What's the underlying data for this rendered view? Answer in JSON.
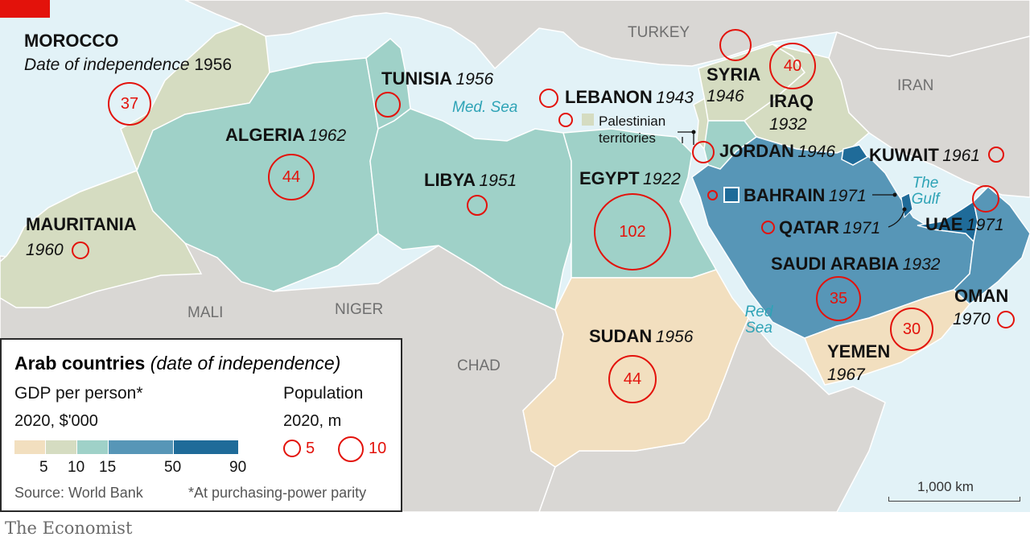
{
  "publisher": "The Economist",
  "legend": {
    "title": "Arab countries",
    "title_note": "(date of independence)",
    "gdp_label": "GDP per person*",
    "gdp_unit": "2020, $'000",
    "gdp_ticks": [
      "5",
      "10",
      "15",
      "50",
      "90"
    ],
    "gdp_colors": [
      "#f2dfbf",
      "#d5dcc1",
      "#9fd1c8",
      "#5796b7",
      "#1f6b99"
    ],
    "pop_label": "Population",
    "pop_unit": "2020, m",
    "pop_example_small": "5",
    "pop_example_large": "10",
    "source": "Source: World Bank",
    "footnote": "*At purchasing-power parity"
  },
  "scale_label": "1,000 km",
  "subtitle": "Date of independence",
  "countries": [
    {
      "name": "MOROCCO",
      "year": "1956",
      "population_label": "37"
    },
    {
      "name": "ALGERIA",
      "year": "1962",
      "population_label": "44"
    },
    {
      "name": "TUNISIA",
      "year": "1956"
    },
    {
      "name": "LIBYA",
      "year": "1951"
    },
    {
      "name": "MAURITANIA",
      "year": "1960"
    },
    {
      "name": "EGYPT",
      "year": "1922",
      "population_label": "102"
    },
    {
      "name": "SUDAN",
      "year": "1956",
      "population_label": "44"
    },
    {
      "name": "LEBANON",
      "year": "1943"
    },
    {
      "name": "SYRIA",
      "year": "1946"
    },
    {
      "name": "IRAQ",
      "year": "1932",
      "population_label": "40"
    },
    {
      "name": "JORDAN",
      "year": "1946"
    },
    {
      "name": "KUWAIT",
      "year": "1961"
    },
    {
      "name": "BAHRAIN",
      "year": "1971"
    },
    {
      "name": "QATAR",
      "year": "1971"
    },
    {
      "name": "UAE",
      "year": "1971"
    },
    {
      "name": "SAUDI ARABIA",
      "year": "1932",
      "population_label": "35"
    },
    {
      "name": "OMAN",
      "year": "1970"
    },
    {
      "name": "YEMEN",
      "year": "1967",
      "population_label": "30"
    }
  ],
  "palestinian_label": "Palestinian territories",
  "neighbours": [
    "TURKEY",
    "IRAN",
    "MALI",
    "NIGER",
    "CHAD"
  ],
  "seas": [
    "Med. Sea",
    "Red Sea",
    "The Gulf"
  ]
}
